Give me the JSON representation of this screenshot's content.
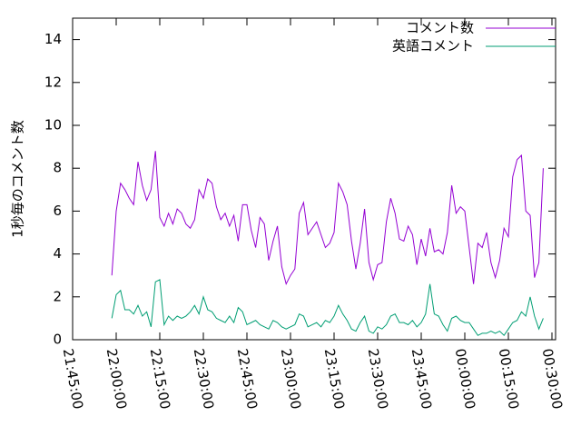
{
  "chart_data": {
    "type": "line",
    "y_label": "1秒毎のコメント数",
    "x": [
      "21:58:30",
      "22:00:00",
      "22:01:30",
      "22:03:00",
      "22:04:30",
      "22:06:00",
      "22:07:30",
      "22:09:00",
      "22:10:30",
      "22:12:00",
      "22:13:30",
      "22:15:00",
      "22:16:30",
      "22:18:00",
      "22:19:30",
      "22:21:00",
      "22:22:30",
      "22:24:00",
      "22:25:30",
      "22:27:00",
      "22:28:30",
      "22:30:00",
      "22:31:30",
      "22:33:00",
      "22:34:30",
      "22:36:00",
      "22:37:30",
      "22:39:00",
      "22:40:30",
      "22:42:00",
      "22:43:30",
      "22:45:00",
      "22:46:30",
      "22:48:00",
      "22:49:30",
      "22:51:00",
      "22:52:30",
      "22:54:00",
      "22:55:30",
      "22:57:00",
      "22:58:30",
      "23:00:00",
      "23:01:30",
      "23:03:00",
      "23:04:30",
      "23:06:00",
      "23:07:30",
      "23:09:00",
      "23:10:30",
      "23:12:00",
      "23:13:30",
      "23:15:00",
      "23:16:30",
      "23:18:00",
      "23:19:30",
      "23:21:00",
      "23:22:30",
      "23:24:00",
      "23:25:30",
      "23:27:00",
      "23:28:30",
      "23:30:00",
      "23:31:30",
      "23:33:00",
      "23:34:30",
      "23:36:00",
      "23:37:30",
      "23:39:00",
      "23:40:30",
      "23:42:00",
      "23:43:30",
      "23:45:00",
      "23:46:30",
      "23:48:00",
      "23:49:30",
      "23:51:00",
      "23:52:30",
      "23:54:00",
      "23:55:30",
      "23:57:00",
      "23:58:30",
      "00:00:00",
      "00:01:30",
      "00:03:00",
      "00:04:30",
      "00:06:00",
      "00:07:30",
      "00:09:00",
      "00:10:30",
      "00:12:00",
      "00:13:30",
      "00:15:00",
      "00:16:30",
      "00:18:00",
      "00:19:30",
      "00:21:00",
      "00:22:30",
      "00:24:00",
      "00:25:30",
      "00:27:00"
    ],
    "series": [
      {
        "name": "コメント数",
        "color": "#9400d3",
        "values": [
          3.0,
          6.0,
          7.3,
          7.0,
          6.6,
          6.3,
          8.3,
          7.2,
          6.5,
          7.0,
          8.8,
          5.7,
          5.3,
          5.9,
          5.4,
          6.1,
          5.9,
          5.4,
          5.2,
          5.6,
          7.0,
          6.6,
          7.5,
          7.3,
          6.2,
          5.6,
          5.9,
          5.3,
          5.8,
          4.6,
          6.3,
          6.3,
          5.1,
          4.3,
          5.7,
          5.4,
          3.7,
          4.6,
          5.3,
          3.4,
          2.6,
          3.0,
          3.3,
          5.9,
          6.4,
          4.9,
          5.2,
          5.5,
          4.9,
          4.3,
          4.5,
          5.0,
          7.3,
          6.9,
          6.3,
          4.6,
          3.3,
          4.5,
          6.1,
          3.6,
          2.8,
          3.5,
          3.6,
          5.5,
          6.6,
          5.9,
          4.7,
          4.6,
          5.3,
          4.9,
          3.5,
          4.7,
          3.9,
          5.2,
          4.1,
          4.2,
          4.0,
          5.0,
          7.2,
          5.9,
          6.2,
          6.0,
          4.3,
          2.6,
          4.5,
          4.3,
          5.0,
          3.6,
          2.9,
          3.7,
          5.2,
          4.8,
          7.6,
          8.4,
          8.6,
          6.0,
          5.8,
          2.9,
          3.6,
          8.0
        ]
      },
      {
        "name": "英語コメント",
        "color": "#009e73",
        "values": [
          1.0,
          2.1,
          2.3,
          1.4,
          1.4,
          1.2,
          1.6,
          1.1,
          1.3,
          0.6,
          2.7,
          2.8,
          0.7,
          1.1,
          0.9,
          1.1,
          1.0,
          1.1,
          1.3,
          1.6,
          1.2,
          2.0,
          1.4,
          1.3,
          1.0,
          0.9,
          0.8,
          1.1,
          0.8,
          1.5,
          1.3,
          0.7,
          0.8,
          0.9,
          0.7,
          0.6,
          0.5,
          0.9,
          0.8,
          0.6,
          0.5,
          0.6,
          0.7,
          1.2,
          1.1,
          0.6,
          0.7,
          0.8,
          0.6,
          0.9,
          0.8,
          1.1,
          1.6,
          1.2,
          0.9,
          0.5,
          0.4,
          0.8,
          1.1,
          0.4,
          0.3,
          0.6,
          0.5,
          0.7,
          1.1,
          1.2,
          0.8,
          0.8,
          0.7,
          0.9,
          0.6,
          0.8,
          1.2,
          2.6,
          1.2,
          1.1,
          0.7,
          0.4,
          1.0,
          1.1,
          0.9,
          0.8,
          0.8,
          0.5,
          0.2,
          0.3,
          0.3,
          0.4,
          0.3,
          0.4,
          0.2,
          0.5,
          0.8,
          0.9,
          1.3,
          1.1,
          2.0,
          1.1,
          0.5,
          1.0
        ]
      }
    ],
    "xlim": [
      "21:45:00",
      "00:31:15"
    ],
    "xticks": [
      "21:45:00",
      "22:00:00",
      "22:15:00",
      "22:30:00",
      "22:45:00",
      "23:00:00",
      "23:15:00",
      "23:30:00",
      "23:45:00",
      "00:00:00",
      "00:15:00",
      "00:30:00"
    ],
    "ylim": [
      0,
      15
    ],
    "yticks": [
      0,
      2,
      4,
      6,
      8,
      10,
      12,
      14
    ],
    "legend": "top-right"
  }
}
